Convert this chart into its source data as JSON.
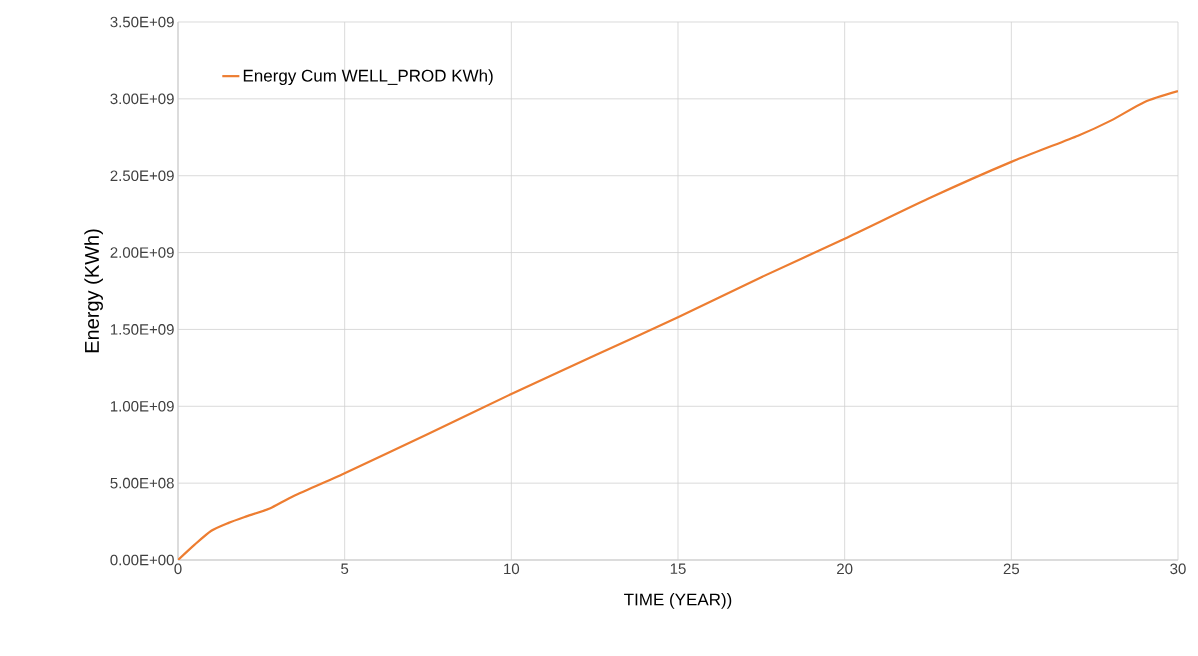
{
  "chart_data": {
    "type": "line",
    "xlabel": "TIME  (YEAR))",
    "ylabel": "Energy  (KWh)",
    "x": [
      0,
      0.5,
      1,
      1.5,
      2,
      2.75,
      3.5,
      5,
      7.5,
      10,
      12.5,
      15,
      17.5,
      20,
      22.5,
      25,
      27,
      28,
      29,
      30
    ],
    "series": [
      {
        "name": "Energy Cum WELL_PROD KWh)",
        "color": "#ed7d31",
        "values": [
          0,
          100000000.0,
          190000000.0,
          240000000.0,
          280000000.0,
          335000000.0,
          420000000.0,
          565000000.0,
          820000000.0,
          1080000000.0,
          1330000000.0,
          1580000000.0,
          1840000000.0,
          2090000000.0,
          2350000000.0,
          2590000000.0,
          2760000000.0,
          2860000000.0,
          2980000000.0,
          3050000000.0
        ]
      }
    ],
    "xlim": [
      0,
      30
    ],
    "xticks": [
      0,
      5,
      10,
      15,
      20,
      25,
      30
    ],
    "ylim": [
      0,
      3500000000
    ],
    "yticks": [
      {
        "value": 0,
        "label": "0.00E+00"
      },
      {
        "value": 500000000,
        "label": "5.00E+08"
      },
      {
        "value": 1000000000,
        "label": "1.00E+09"
      },
      {
        "value": 1500000000,
        "label": "1.50E+09"
      },
      {
        "value": 2000000000,
        "label": "2.00E+09"
      },
      {
        "value": 2500000000,
        "label": "2.50E+09"
      },
      {
        "value": 3000000000,
        "label": "3.00E+09"
      },
      {
        "value": 3500000000,
        "label": "3.50E+09"
      }
    ],
    "grid": true,
    "legend": "top left",
    "marker": "none",
    "line_style": "solid"
  }
}
